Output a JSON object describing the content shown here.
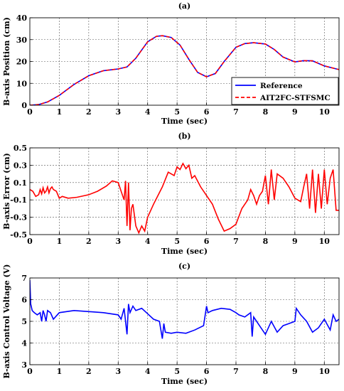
{
  "chart_data": [
    {
      "type": "line",
      "title": "(a)",
      "xlabel": "Time (sec)",
      "ylabel": "B-axis Position (cm)",
      "xlim": [
        0,
        10.5
      ],
      "ylim": [
        0,
        40
      ],
      "xticks": [
        0,
        1,
        2,
        3,
        4,
        5,
        6,
        7,
        8,
        9,
        10
      ],
      "yticks": [
        0,
        10,
        20,
        30,
        40
      ],
      "grid": true,
      "legend": "bottom-right",
      "series": [
        {
          "name": "Reference",
          "color": "#0000ff",
          "style": "solid",
          "x": [
            0,
            0.3,
            0.6,
            1.0,
            1.5,
            2.0,
            2.5,
            3.0,
            3.3,
            3.6,
            4.0,
            4.3,
            4.5,
            4.8,
            5.1,
            5.4,
            5.7,
            6.0,
            6.3,
            6.6,
            7.0,
            7.3,
            7.6,
            8.0,
            8.3,
            8.6,
            9.0,
            9.3,
            9.6,
            10.0,
            10.5
          ],
          "y": [
            0,
            0.3,
            1.5,
            4.5,
            9.5,
            13.5,
            15.8,
            16.6,
            17.5,
            21.5,
            29,
            31.5,
            31.8,
            31,
            27.5,
            21,
            15,
            13,
            14.5,
            20,
            26.5,
            28.2,
            28.6,
            28,
            25.5,
            22,
            19.8,
            20.4,
            20.3,
            18,
            16.3
          ]
        },
        {
          "name": "AIT2FC-STFSMC",
          "color": "#ff0000",
          "style": "dashed",
          "x": [
            0,
            0.3,
            0.6,
            1.0,
            1.5,
            2.0,
            2.5,
            3.0,
            3.3,
            3.6,
            4.0,
            4.3,
            4.5,
            4.8,
            5.1,
            5.4,
            5.7,
            6.0,
            6.3,
            6.6,
            7.0,
            7.3,
            7.6,
            8.0,
            8.3,
            8.6,
            9.0,
            9.3,
            9.6,
            10.0,
            10.5
          ],
          "y": [
            0,
            0.3,
            1.5,
            4.5,
            9.5,
            13.5,
            15.8,
            16.6,
            17.5,
            21.5,
            29,
            31.5,
            31.8,
            31,
            27.5,
            21,
            15,
            13,
            14.5,
            20,
            26.5,
            28.2,
            28.6,
            28,
            25.5,
            22,
            19.8,
            20.4,
            20.3,
            18,
            16.3
          ]
        }
      ]
    },
    {
      "type": "line",
      "title": "(b)",
      "xlabel": "Time (sec)",
      "ylabel": "B-axis Error (cm)",
      "xlim": [
        0,
        10.5
      ],
      "ylim": [
        -0.5,
        0.5
      ],
      "xticks": [
        0,
        1,
        2,
        3,
        4,
        5,
        6,
        7,
        8,
        9,
        10
      ],
      "yticks": [
        -0.5,
        -0.3,
        -0.1,
        0.1,
        0.3,
        0.5
      ],
      "grid": true,
      "series": [
        {
          "color": "#ff0000",
          "x": [
            0,
            0.1,
            0.2,
            0.3,
            0.35,
            0.4,
            0.45,
            0.5,
            0.55,
            0.6,
            0.65,
            0.7,
            0.75,
            0.8,
            0.9,
            1.0,
            1.1,
            1.3,
            1.6,
            2.0,
            2.3,
            2.6,
            2.8,
            3.0,
            3.1,
            3.2,
            3.25,
            3.3,
            3.35,
            3.4,
            3.45,
            3.5,
            3.6,
            3.7,
            3.8,
            3.9,
            4.0,
            4.2,
            4.5,
            4.7,
            4.9,
            5.0,
            5.1,
            5.2,
            5.3,
            5.4,
            5.5,
            5.6,
            5.8,
            6.0,
            6.2,
            6.4,
            6.6,
            6.8,
            7.0,
            7.2,
            7.4,
            7.5,
            7.6,
            7.7,
            7.8,
            7.9,
            8.0,
            8.1,
            8.2,
            8.3,
            8.4,
            8.6,
            8.8,
            9.0,
            9.2,
            9.3,
            9.4,
            9.5,
            9.6,
            9.7,
            9.8,
            9.9,
            10.0,
            10.1,
            10.2,
            10.3,
            10.4,
            10.5
          ],
          "y": [
            0.02,
            0.0,
            -0.06,
            -0.04,
            0.02,
            -0.03,
            0.04,
            -0.02,
            0.0,
            0.05,
            -0.02,
            0.03,
            0.05,
            0.02,
            0.0,
            -0.08,
            -0.06,
            -0.08,
            -0.07,
            -0.04,
            0.0,
            0.06,
            0.12,
            0.1,
            0.0,
            -0.1,
            0.12,
            -0.4,
            0.1,
            -0.45,
            -0.2,
            -0.15,
            -0.4,
            -0.48,
            -0.4,
            -0.46,
            -0.3,
            -0.15,
            0.05,
            0.22,
            0.18,
            0.28,
            0.25,
            0.32,
            0.26,
            0.3,
            0.15,
            0.18,
            0.05,
            -0.05,
            -0.15,
            -0.32,
            -0.46,
            -0.43,
            -0.38,
            -0.2,
            -0.1,
            0.02,
            -0.05,
            -0.15,
            -0.05,
            0.0,
            0.18,
            -0.15,
            0.25,
            -0.1,
            0.2,
            0.15,
            0.05,
            -0.08,
            -0.12,
            0.05,
            0.2,
            -0.2,
            0.25,
            -0.25,
            0.2,
            -0.2,
            0.25,
            -0.15,
            0.15,
            0.25,
            -0.22,
            -0.22
          ]
        }
      ]
    },
    {
      "type": "line",
      "title": "(c)",
      "xlabel": "Time (sec)",
      "ylabel": "B-axis Control Voltage (V)",
      "xlim": [
        0,
        10.5
      ],
      "ylim": [
        3,
        7
      ],
      "xticks": [
        0,
        1,
        2,
        3,
        4,
        5,
        6,
        7,
        8,
        9,
        10
      ],
      "yticks": [
        3,
        4,
        5,
        6,
        7
      ],
      "grid": true,
      "series": [
        {
          "color": "#0000ff",
          "x": [
            0,
            0.03,
            0.08,
            0.15,
            0.25,
            0.35,
            0.4,
            0.45,
            0.5,
            0.55,
            0.6,
            0.7,
            0.8,
            1.0,
            1.5,
            2.0,
            2.5,
            3.0,
            3.1,
            3.2,
            3.3,
            3.35,
            3.4,
            3.5,
            3.6,
            3.8,
            4.0,
            4.2,
            4.4,
            4.5,
            4.55,
            4.6,
            4.8,
            5.0,
            5.3,
            5.6,
            5.9,
            6.0,
            6.05,
            6.2,
            6.5,
            6.8,
            7.0,
            7.1,
            7.3,
            7.5,
            7.55,
            7.6,
            7.8,
            8.0,
            8.2,
            8.4,
            8.6,
            8.8,
            9.0,
            9.05,
            9.2,
            9.4,
            9.6,
            9.8,
            10.0,
            10.2,
            10.3,
            10.4,
            10.5
          ],
          "y": [
            6.9,
            5.8,
            5.5,
            5.4,
            5.3,
            5.4,
            5.0,
            5.5,
            5.3,
            5.0,
            5.5,
            5.4,
            5.1,
            5.4,
            5.5,
            5.45,
            5.4,
            5.3,
            5.1,
            5.6,
            4.4,
            5.8,
            5.4,
            5.7,
            5.5,
            5.6,
            5.35,
            5.1,
            5.0,
            4.2,
            4.9,
            4.5,
            4.45,
            4.5,
            4.45,
            4.6,
            4.8,
            5.7,
            5.4,
            5.5,
            5.6,
            5.55,
            5.4,
            5.3,
            5.2,
            5.4,
            4.3,
            5.2,
            4.8,
            4.4,
            5.0,
            4.5,
            4.8,
            4.9,
            5.0,
            5.6,
            5.3,
            5.0,
            4.5,
            4.7,
            5.1,
            4.6,
            5.3,
            5.0,
            5.1
          ]
        }
      ]
    }
  ]
}
